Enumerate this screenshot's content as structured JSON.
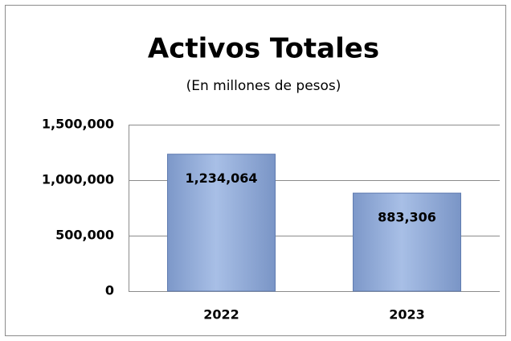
{
  "chart_data": {
    "type": "bar",
    "title": "Activos Totales",
    "subtitle": "(En millones de pesos)",
    "categories": [
      "2022",
      "2023"
    ],
    "values": [
      1234064,
      883306
    ],
    "value_labels": [
      "1,234,064",
      "883,306"
    ],
    "color": "#8ea8d8",
    "ylim": [
      0,
      1500000
    ],
    "yticks": [
      0,
      {
        "value": 500000,
        "label": "500,000"
      },
      {
        "value": 1000000,
        "label": "1,000,000"
      },
      {
        "value": 1500000,
        "label": "1,500,000"
      }
    ],
    "grid": true
  }
}
